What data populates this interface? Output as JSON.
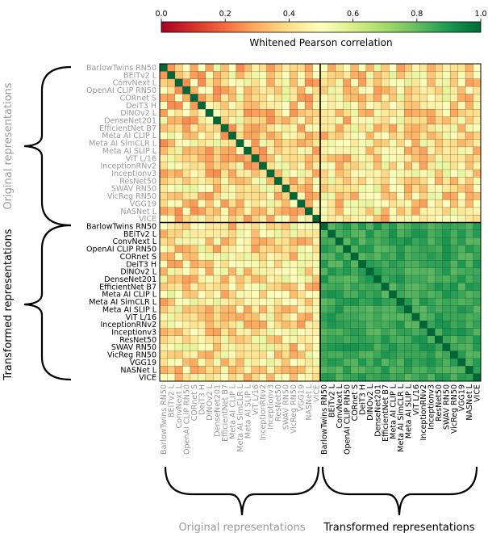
{
  "chart_data": {
    "type": "heatmap",
    "title": "",
    "colorbar": {
      "label": "Whitened Pearson correlation",
      "range": [
        0.0,
        1.0
      ],
      "ticks": [
        0.0,
        0.2,
        0.4,
        0.6,
        0.8,
        1.0
      ],
      "tick_labels": [
        "0.0",
        "0.2",
        "0.4",
        "0.6",
        "0.8",
        "1.0"
      ],
      "colormap": "RdYlGn"
    },
    "models": [
      "BarlowTwins RN50",
      "BEiTv2 L",
      "ConvNext L",
      "OpenAI CLIP RN50",
      "CORnet S",
      "DeiT3 H",
      "DINOv2 L",
      "DenseNet201",
      "EfficientNet B7",
      "Meta AI CLIP L",
      "Meta AI SimCLR L",
      "Meta AI SLIP L",
      "ViT L/16",
      "InceptionRNv2",
      "Inceptionv3",
      "ResNet50",
      "SWAV RN50",
      "VicReg RN50",
      "VGG19",
      "NASNet L",
      "VICE"
    ],
    "groups": [
      {
        "name": "Original representations",
        "color": "#9a9a9a"
      },
      {
        "name": "Transformed representations",
        "color": "#000000"
      }
    ],
    "block_means": {
      "original_original": 0.4,
      "original_transformed": 0.42,
      "transformed_transformed": 0.86
    },
    "diagonal": 1.0
  },
  "colors": {
    "low": "#d73027",
    "mid": "#fee08b",
    "high": "#1a9850",
    "original_label": "#9a9a9a",
    "transformed_label": "#000000"
  }
}
